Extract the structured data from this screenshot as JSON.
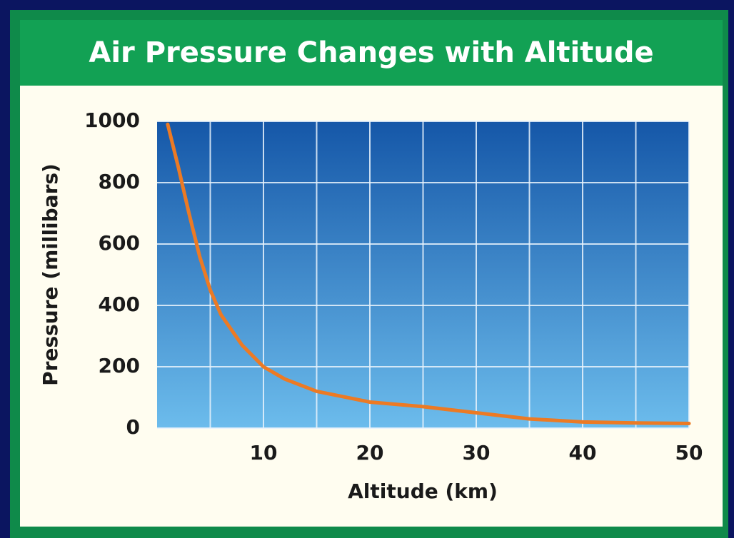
{
  "chart_data": {
    "type": "line",
    "title": "Air Pressure Changes with Altitude",
    "x_label": "Altitude (km)",
    "y_label": "Pressure (millibars)",
    "x": [
      1,
      2,
      3,
      4,
      5,
      6,
      8,
      10,
      12,
      15,
      20,
      25,
      30,
      35,
      40,
      45,
      50
    ],
    "values": [
      990,
      850,
      700,
      560,
      450,
      370,
      270,
      200,
      160,
      120,
      85,
      70,
      50,
      30,
      20,
      17,
      15
    ],
    "color": "#ec7a24",
    "xlim": [
      0,
      50
    ],
    "xticks": [
      10,
      20,
      30,
      40,
      50
    ],
    "x_minor_grid": [
      5,
      15,
      25,
      35,
      45
    ],
    "ylim": [
      0,
      1000
    ],
    "yticks": [
      0,
      200,
      400,
      600,
      800,
      1000
    ],
    "grid": true
  }
}
